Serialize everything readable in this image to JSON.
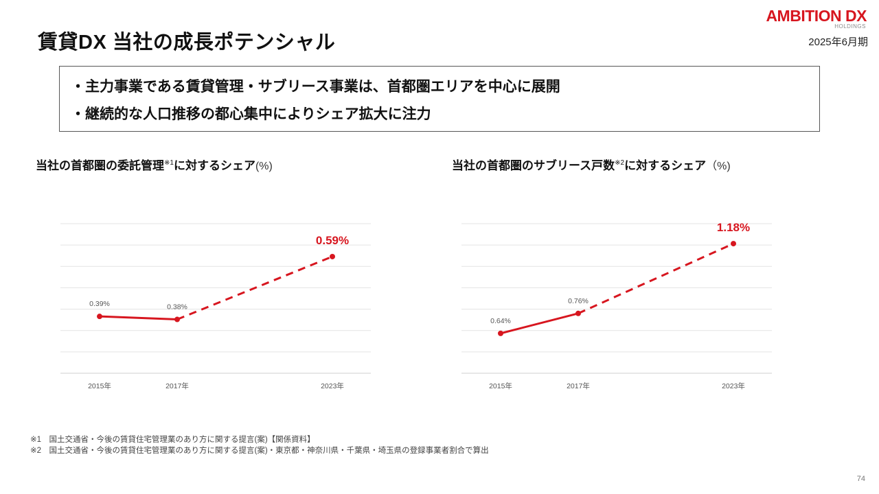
{
  "slide": {
    "title": "賃貸DX 当社の成長ポテンシャル",
    "logo_main": "AMBITION DX",
    "logo_sub": "HOLDINGS",
    "period": "2025年6月期",
    "page_number": "74"
  },
  "summary": {
    "lines": [
      "・主力事業である賃貸管理・サブリース事業は、首都圏エリアを中心に展開",
      "・継続的な人口推移の都心集中によりシェア拡大に注力"
    ]
  },
  "chart_titles": [
    {
      "pre": "当社の首都圏の委託管理",
      "note": "※1",
      "post": "に対するシェア",
      "unit": "(%)"
    },
    {
      "pre": "当社の首都圏のサブリース戸数",
      "note": "※2",
      "post": "に対するシェア",
      "unit": "（%)"
    }
  ],
  "chart_data": [
    {
      "type": "line",
      "x": [
        "2015年",
        "2017年",
        "2023年"
      ],
      "series": [
        {
          "values": [
            0.39,
            0.38,
            0.59
          ]
        }
      ],
      "data_labels": [
        "0.39%",
        "0.38%",
        "0.59%"
      ],
      "solid_segment": [
        0,
        1
      ],
      "dashed_segment": [
        1,
        2
      ],
      "highlight_index": 2,
      "ylim": [
        0.2,
        0.7
      ],
      "grid": true,
      "color": "#d7161f"
    },
    {
      "type": "line",
      "x": [
        "2015年",
        "2017年",
        "2023年"
      ],
      "series": [
        {
          "values": [
            0.64,
            0.76,
            1.18
          ]
        }
      ],
      "data_labels": [
        "0.64%",
        "0.76%",
        "1.18%"
      ],
      "solid_segment": [
        0,
        1
      ],
      "dashed_segment": [
        1,
        2
      ],
      "highlight_index": 2,
      "ylim": [
        0.4,
        1.3
      ],
      "grid": true,
      "color": "#d7161f"
    }
  ],
  "footnotes": [
    "※1　国土交通省・今後の賃貸住宅管理業のあり方に関する提言(案)【関係資料】",
    "※2　国土交通省・今後の賃貸住宅管理業のあり方に関する提言(案)・東京都・神奈川県・千葉県・埼玉県の登録事業者割合で算出"
  ]
}
